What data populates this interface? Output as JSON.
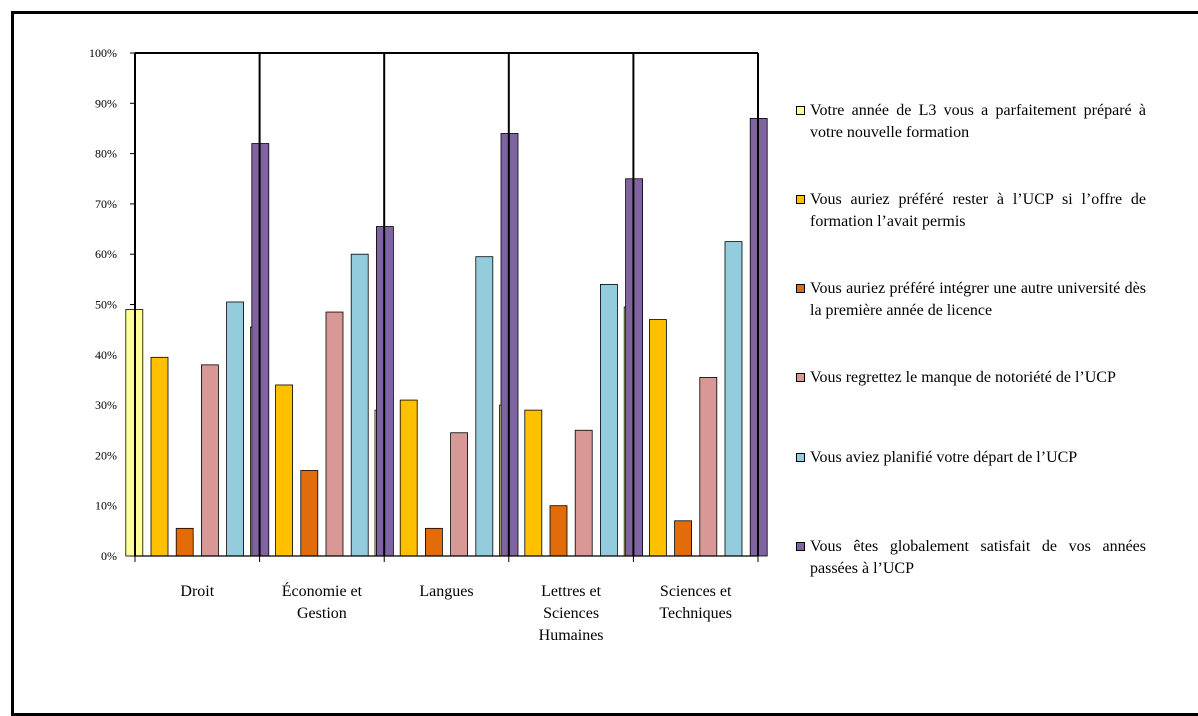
{
  "chart_data": {
    "type": "bar",
    "categories": [
      [
        "Droit"
      ],
      [
        "Économie et",
        "Gestion"
      ],
      [
        "Langues"
      ],
      [
        "Lettres et",
        "Sciences",
        "Humaines"
      ],
      [
        "Sciences et",
        "Techniques"
      ]
    ],
    "yticks": [
      "0%",
      "10%",
      "20%",
      "30%",
      "40%",
      "50%",
      "60%",
      "70%",
      "80%",
      "90%",
      "100%"
    ],
    "ylim": [
      0,
      100
    ],
    "grid": false,
    "legend_position": "right",
    "series": [
      {
        "name": "Votre année de L3 vous a parfaitement préparé à votre nouvelle formation",
        "color": "#ffff99",
        "values": [
          49,
          45.5,
          29,
          30,
          49.5
        ]
      },
      {
        "name": "Vous auriez préféré rester à l’UCP si l’offre de formation l’avait permis",
        "color": "#ffc000",
        "values": [
          39.5,
          34,
          31,
          29,
          47
        ]
      },
      {
        "name": "Vous auriez préféré intégrer une autre université dès la première année de licence",
        "color": "#e36c0a",
        "values": [
          5.5,
          17,
          5.5,
          10,
          7
        ]
      },
      {
        "name": "Vous regrettez le manque de notoriété de l’UCP",
        "color": "#d99795",
        "values": [
          38,
          48.5,
          24.5,
          25,
          35.5
        ]
      },
      {
        "name": "Vous aviez planifié votre départ de l’UCP",
        "color": "#93cddd",
        "values": [
          50.5,
          60,
          59.5,
          54,
          62.5
        ]
      },
      {
        "name": "Vous êtes globalement satisfait de vos années passées à l’UCP",
        "color": "#8064a2",
        "values": [
          82,
          65.5,
          84,
          75,
          87
        ]
      }
    ]
  }
}
